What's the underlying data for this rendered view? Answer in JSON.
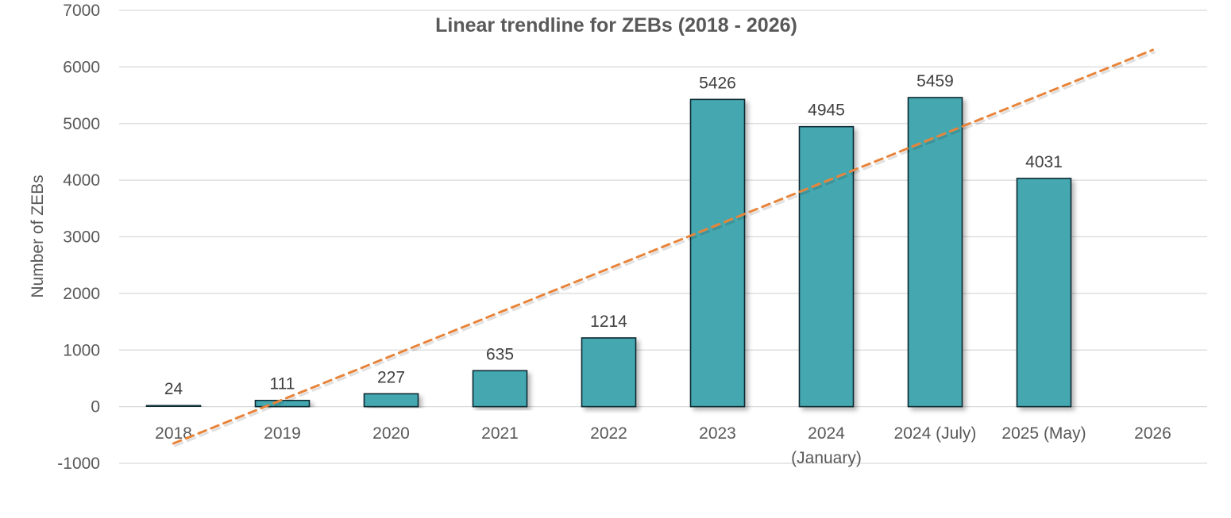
{
  "chart_data": {
    "type": "bar",
    "title": "Linear trendline for ZEBs (2018 - 2026)",
    "xlabel": "",
    "ylabel": "Number of ZEBs",
    "ylim": [
      -1000,
      7000
    ],
    "yticks": [
      7000,
      6000,
      5000,
      4000,
      3000,
      2000,
      1000,
      0,
      -1000
    ],
    "grid": true,
    "categories": [
      [
        "2018"
      ],
      [
        "2019"
      ],
      [
        "2020"
      ],
      [
        "2021"
      ],
      [
        "2022"
      ],
      [
        "2023"
      ],
      [
        "2024",
        "(January)"
      ],
      [
        "2024 (July)"
      ],
      [
        "2025 (May)"
      ],
      [
        "2026"
      ]
    ],
    "series": [
      {
        "values": [
          24,
          111,
          227,
          635,
          1214,
          5426,
          4945,
          5459,
          4031,
          null
        ]
      }
    ],
    "trendline": {
      "type": "linear",
      "start": {
        "x": "2018",
        "y": -650
      },
      "end": {
        "x": "2026",
        "y": 6300
      }
    },
    "colors": {
      "bar": "#45a8b0",
      "bar_edge": "#0f2a33",
      "trendline": "#e8843a",
      "grid": "#d9d9d9",
      "text": "#595959"
    }
  }
}
